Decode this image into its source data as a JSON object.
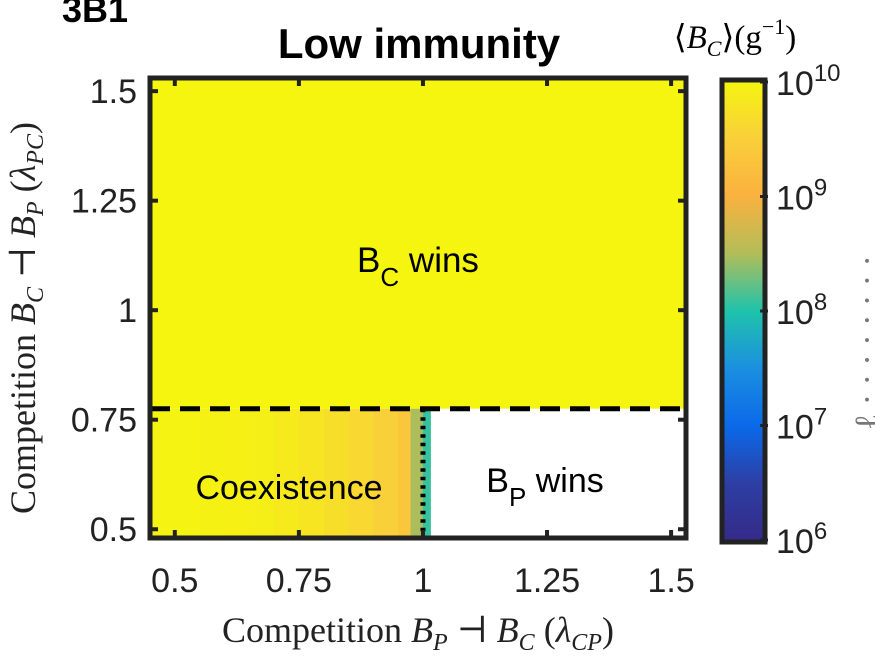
{
  "panel_label": "3B1",
  "chart_data": {
    "type": "heatmap",
    "title": "Low immunity",
    "xlabel": "Competition B_P ⊣ B_C (λ_CP)",
    "ylabel": "Competition B_C ⊣ B_P (λ_PC)",
    "xlim": [
      0.45,
      1.53
    ],
    "ylim": [
      0.48,
      1.53
    ],
    "xticks": [
      0.5,
      0.75,
      1,
      1.25,
      1.5
    ],
    "xtick_labels": [
      "0.5",
      "0.75",
      "1",
      "1.25",
      "1.5"
    ],
    "yticks": [
      0.5,
      0.75,
      1,
      1.25,
      1.5
    ],
    "ytick_labels": [
      "0.5",
      "0.75",
      "1",
      "1.25",
      "1.5"
    ],
    "colorbar": {
      "label": "⟨B_C⟩(g⁻¹)",
      "scale": "log",
      "range": [
        1000000.0,
        10000000000.0
      ],
      "tick_labels": [
        "10^10",
        "10^9",
        "10^8",
        "10^7",
        "10^6"
      ],
      "colors": [
        "#f5f50f",
        "#f9d03a",
        "#fbb13f",
        "#b3bd58",
        "#1fc3ab",
        "#1b8fe0",
        "#0b69e9",
        "#2d3ea3",
        "#352a87"
      ]
    },
    "regions": [
      {
        "label": "B_C wins",
        "lambda_CP": [
          0.45,
          1.53
        ],
        "lambda_PC": [
          0.775,
          1.53
        ],
        "mean_BC": 10000000000.0
      },
      {
        "label": "Coexistence",
        "lambda_CP": [
          0.45,
          1.0
        ],
        "lambda_PC": [
          0.48,
          0.775
        ],
        "mean_BC_range": [
          3000000000.0,
          10000000000.0
        ]
      },
      {
        "label": "B_P wins",
        "lambda_CP": [
          1.03,
          1.53
        ],
        "lambda_PC": [
          0.48,
          0.775
        ],
        "mean_BC": null
      }
    ],
    "coexistence_strip": {
      "lambda_CP": [
        0.55,
        0.6,
        0.65,
        0.7,
        0.75,
        0.8,
        0.85,
        0.9,
        0.95,
        0.975,
        1.0,
        1.015
      ],
      "mean_BC": [
        9500000000.0,
        9000000000.0,
        8500000000.0,
        8000000000.0,
        7000000000.0,
        6000000000.0,
        5000000000.0,
        4000000000.0,
        3200000000.0,
        2200000000.0,
        300000000.0,
        120000000.0
      ]
    },
    "boundaries": [
      {
        "type": "dashed",
        "orientation": "horizontal",
        "lambda_PC": 0.775
      },
      {
        "type": "dotted",
        "orientation": "vertical",
        "lambda_CP": 1.0,
        "lambda_PC_range": [
          0.48,
          0.775
        ]
      }
    ]
  }
}
